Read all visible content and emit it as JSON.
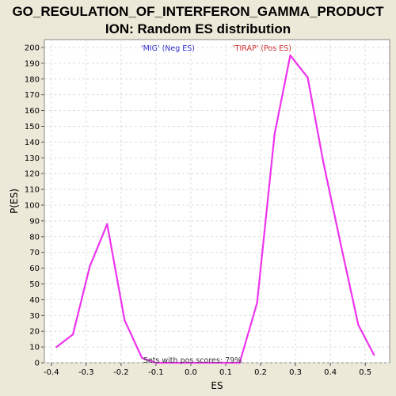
{
  "chart_data": {
    "type": "line",
    "title_line1": "GO_REGULATION_OF_INTERFERON_GAMMA_PRODUCT",
    "title_line2": "ION: Random ES distribution",
    "xlabel": "ES",
    "ylabel": "P(ES)",
    "xlim": [
      -0.42,
      0.57
    ],
    "ylim": [
      0,
      205
    ],
    "x_ticks": [
      -0.4,
      -0.3,
      -0.2,
      -0.1,
      0.0,
      0.1,
      0.2,
      0.3,
      0.4,
      0.5
    ],
    "x_tick_labels": [
      "-0.4",
      "-0.3",
      "-0.2",
      "-0.1",
      "0.0",
      "0.1",
      "0.2",
      "0.3",
      "0.4",
      "0.5"
    ],
    "y_ticks": [
      0,
      10,
      20,
      30,
      40,
      50,
      60,
      70,
      80,
      90,
      100,
      110,
      120,
      130,
      140,
      150,
      160,
      170,
      180,
      190,
      200
    ],
    "grid": true,
    "series": [
      {
        "color": "#ee33ee",
        "x": [
          -0.385,
          -0.338,
          -0.29,
          -0.24,
          -0.19,
          -0.14,
          -0.1,
          -0.05,
          0.0,
          0.05,
          0.09,
          0.14,
          0.19,
          0.24,
          0.285,
          0.335,
          0.38,
          0.43,
          0.48,
          0.525
        ],
        "y": [
          10,
          18,
          61,
          88,
          27,
          3,
          0,
          0,
          0,
          0,
          0,
          0,
          38,
          145,
          195,
          181,
          127,
          75,
          24,
          5
        ]
      }
    ],
    "annotations": {
      "neg": {
        "text": "'MIG' (Neg ES)",
        "color": "#3333cc"
      },
      "pos": {
        "text": "'TIRAP' (Pos ES)",
        "color": "#cc3333"
      },
      "pos_scores": {
        "text": "Sets with pos scores: 79%",
        "color": "#333333"
      }
    }
  }
}
